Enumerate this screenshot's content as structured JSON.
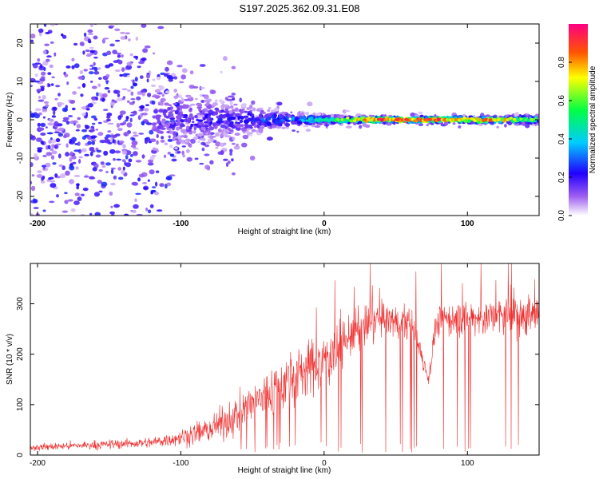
{
  "title": "S197.2025.362.09.31.E08",
  "chart_data": [
    {
      "type": "heatmap",
      "xlabel": "Height of straight line (km)",
      "ylabel": "Frequency (Hz)",
      "xlim": [
        -205,
        150
      ],
      "ylim": [
        -25,
        25
      ],
      "xticks": [
        -200,
        -100,
        0,
        100
      ],
      "xtick_labels": [
        "-200",
        "-100",
        "0",
        "100"
      ],
      "yticks": [
        -20,
        -10,
        0,
        10,
        20
      ],
      "ytick_labels": [
        "-20",
        "-10",
        "0",
        "10",
        "20"
      ],
      "ridge": [
        {
          "x": -200,
          "amp": 0.1,
          "spread": 25
        },
        {
          "x": -150,
          "amp": 0.12,
          "spread": 25
        },
        {
          "x": -120,
          "amp": 0.15,
          "spread": 22
        },
        {
          "x": -100,
          "amp": 0.2,
          "spread": 12
        },
        {
          "x": -80,
          "amp": 0.22,
          "spread": 10
        },
        {
          "x": -60,
          "amp": 0.25,
          "spread": 8
        },
        {
          "x": -40,
          "amp": 0.3,
          "spread": 5
        },
        {
          "x": -20,
          "amp": 0.35,
          "spread": 3
        },
        {
          "x": 0,
          "amp": 0.5,
          "spread": 2
        },
        {
          "x": 20,
          "amp": 0.7,
          "spread": 1.5
        },
        {
          "x": 40,
          "amp": 0.9,
          "spread": 1.2
        },
        {
          "x": 60,
          "amp": 0.85,
          "spread": 1.2
        },
        {
          "x": 80,
          "amp": 0.9,
          "spread": 1.2
        },
        {
          "x": 100,
          "amp": 0.7,
          "spread": 1.5
        },
        {
          "x": 115,
          "amp": 0.9,
          "spread": 1.5
        },
        {
          "x": 140,
          "amp": 0.6,
          "spread": 2
        }
      ],
      "colorbar": {
        "label": "Normalized spectral amplitude",
        "range": [
          0,
          1
        ],
        "ticks": [
          0.0,
          0.2,
          0.4,
          0.6,
          0.8
        ],
        "tick_labels": [
          "0.0",
          "0.2",
          "0.4",
          "0.6",
          "0.8"
        ]
      }
    },
    {
      "type": "line",
      "xlabel": "Height of straight line (km)",
      "ylabel": "SNR (10 * v/v)",
      "xlim": [
        -205,
        150
      ],
      "ylim": [
        0,
        380
      ],
      "xticks": [
        -200,
        -100,
        0,
        100
      ],
      "xtick_labels": [
        "-200",
        "-100",
        "0",
        "100"
      ],
      "yticks": [
        0,
        100,
        200,
        300
      ],
      "ytick_labels": [
        "0",
        "100",
        "200",
        "300"
      ],
      "color": "#f03030",
      "envelope": {
        "x": [
          -205,
          -160,
          -120,
          -100,
          -80,
          -60,
          -40,
          -20,
          0,
          20,
          40,
          60,
          68,
          73,
          78,
          85,
          100,
          120,
          150
        ],
        "mean": [
          15,
          20,
          25,
          35,
          50,
          80,
          120,
          160,
          190,
          240,
          270,
          260,
          200,
          150,
          260,
          270,
          270,
          275,
          280
        ],
        "noise": [
          8,
          10,
          12,
          20,
          30,
          45,
          60,
          70,
          60,
          50,
          40,
          40,
          30,
          20,
          30,
          40,
          40,
          50,
          50
        ]
      }
    }
  ]
}
